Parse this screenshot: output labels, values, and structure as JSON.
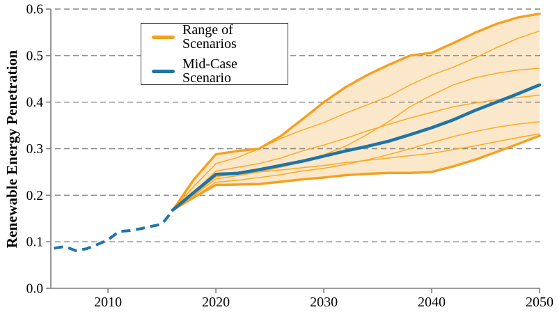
{
  "chart_data": {
    "type": "line",
    "title": "",
    "xlabel": "",
    "ylabel": "Renewable Energy Penetration",
    "xlim": [
      2004.7,
      2050
    ],
    "ylim": [
      0.0,
      0.6
    ],
    "x_ticks": [
      {
        "value": 2010,
        "label": "2010"
      },
      {
        "value": 2020,
        "label": "2020"
      },
      {
        "value": 2030,
        "label": "2030"
      },
      {
        "value": 2040,
        "label": "2040"
      },
      {
        "value": 2050,
        "label": "2050"
      }
    ],
    "y_ticks": [
      {
        "value": 0.0,
        "label": "0.0"
      },
      {
        "value": 0.1,
        "label": "0.1"
      },
      {
        "value": 0.2,
        "label": "0.2"
      },
      {
        "value": 0.3,
        "label": "0.3"
      },
      {
        "value": 0.4,
        "label": "0.4"
      },
      {
        "value": 0.5,
        "label": "0.5"
      },
      {
        "value": 0.6,
        "label": "0.6"
      }
    ],
    "grid": {
      "horizontal_dashed": true
    },
    "colors": {
      "orange": "#F6A01E",
      "thin_orange": "#F7AB27",
      "blue": "#1E74A8",
      "band_fill": "#FBE7C9",
      "axis": "#7d7d7d",
      "grid": "#858585",
      "text": "#000000"
    },
    "legend": {
      "position": "upper-left-of-center",
      "items": [
        {
          "label": "Range of Scenarios",
          "color": "#F6A01E"
        },
        {
          "label": "Mid-Case Scenario",
          "color": "#1E74A8"
        }
      ]
    },
    "historical": {
      "name": "historical-dashed",
      "x": [
        2005,
        2006,
        2007,
        2008,
        2009,
        2010,
        2011,
        2012,
        2013,
        2014,
        2015,
        2016
      ],
      "y": [
        0.086,
        0.09,
        0.081,
        0.085,
        0.094,
        0.104,
        0.122,
        0.124,
        0.128,
        0.133,
        0.138,
        0.167
      ]
    },
    "projection_years": [
      2016,
      2018,
      2020,
      2022,
      2024,
      2026,
      2028,
      2030,
      2032,
      2034,
      2036,
      2038,
      2040,
      2042,
      2044,
      2046,
      2048,
      2050
    ],
    "band": {
      "upper": [
        0.168,
        0.235,
        0.288,
        0.295,
        0.3,
        0.327,
        0.363,
        0.4,
        0.432,
        0.458,
        0.48,
        0.5,
        0.506,
        0.527,
        0.549,
        0.568,
        0.582,
        0.59
      ],
      "lower": [
        0.168,
        0.196,
        0.222,
        0.223,
        0.224,
        0.229,
        0.234,
        0.238,
        0.243,
        0.246,
        0.248,
        0.248,
        0.25,
        0.262,
        0.276,
        0.293,
        0.31,
        0.328
      ]
    },
    "mid_case": [
      0.168,
      0.207,
      0.245,
      0.247,
      0.255,
      0.264,
      0.273,
      0.284,
      0.295,
      0.305,
      0.316,
      0.33,
      0.345,
      0.362,
      0.382,
      0.4,
      0.418,
      0.437
    ],
    "thin_scenarios": [
      [
        0.168,
        0.22,
        0.268,
        0.281,
        0.3,
        0.322,
        0.34,
        0.356,
        0.376,
        0.394,
        0.412,
        0.437,
        0.458,
        0.475,
        0.495,
        0.517,
        0.537,
        0.553
      ],
      [
        0.168,
        0.2,
        0.235,
        0.242,
        0.25,
        0.26,
        0.272,
        0.287,
        0.305,
        0.33,
        0.358,
        0.39,
        0.415,
        0.437,
        0.452,
        0.462,
        0.469,
        0.473
      ],
      [
        0.168,
        0.208,
        0.252,
        0.26,
        0.268,
        0.28,
        0.295,
        0.308,
        0.322,
        0.338,
        0.352,
        0.366,
        0.378,
        0.39,
        0.398,
        0.405,
        0.41,
        0.415
      ],
      [
        0.168,
        0.196,
        0.228,
        0.232,
        0.238,
        0.244,
        0.252,
        0.258,
        0.266,
        0.276,
        0.287,
        0.3,
        0.313,
        0.326,
        0.337,
        0.346,
        0.353,
        0.358
      ],
      [
        0.168,
        0.202,
        0.24,
        0.246,
        0.25,
        0.254,
        0.259,
        0.264,
        0.27,
        0.275,
        0.28,
        0.285,
        0.29,
        0.298,
        0.306,
        0.315,
        0.324,
        0.332
      ]
    ]
  }
}
